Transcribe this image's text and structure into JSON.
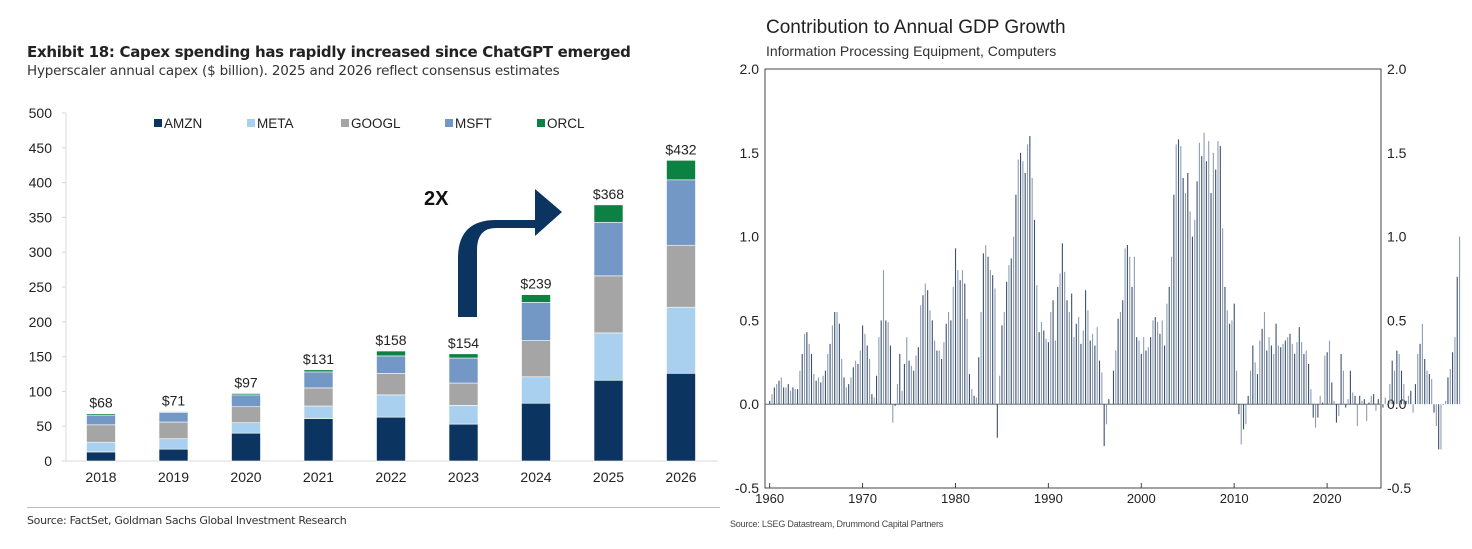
{
  "left": {
    "title": "Exhibit 18: Capex spending has rapidly increased since ChatGPT emerged",
    "subtitle": "Hyperscaler annual capex ($ billion). 2025 and 2026 reflect consensus estimates",
    "source": "Source: FactSet, Goldman Sachs Global Investment Research",
    "annotation": "2X"
  },
  "right": {
    "title": "Contribution to Annual GDP Growth",
    "subtitle": "Information Processing Equipment, Computers",
    "source": "Source: LSEG Datastream, Drummond Capital Partners"
  },
  "colors": {
    "AMZN": "#0b3560",
    "META": "#a9d1ef",
    "GOOGL": "#a5a5a5",
    "MSFT": "#7398c6",
    "ORCL": "#0b8244",
    "arrow": "#0b3560",
    "gdp_bar_dark": "#3c5070",
    "gdp_bar_light": "#8e9db2"
  },
  "chart_data": [
    {
      "type": "bar",
      "stacked": true,
      "title": "Exhibit 18: Capex spending has rapidly increased since ChatGPT emerged",
      "subtitle": "Hyperscaler annual capex ($ billion). 2025 and 2026 reflect consensus estimates",
      "xlabel": "",
      "ylabel": "",
      "ylim": [
        0,
        500
      ],
      "yticks": [
        0,
        50,
        100,
        150,
        200,
        250,
        300,
        350,
        400,
        450,
        500
      ],
      "grid": false,
      "legend_position": "top",
      "categories": [
        "2018",
        "2019",
        "2020",
        "2021",
        "2022",
        "2023",
        "2024",
        "2025",
        "2026"
      ],
      "series": [
        {
          "name": "AMZN",
          "values": [
            13,
            17,
            40,
            61,
            63,
            53,
            83,
            116,
            126
          ]
        },
        {
          "name": "META",
          "values": [
            14,
            15,
            15,
            18,
            32,
            27,
            38,
            68,
            95
          ]
        },
        {
          "name": "GOOGL",
          "values": [
            25,
            24,
            23,
            26,
            31,
            32,
            52,
            82,
            89
          ]
        },
        {
          "name": "MSFT",
          "values": [
            14,
            14,
            17,
            23,
            25,
            36,
            55,
            77,
            94
          ]
        },
        {
          "name": "ORCL",
          "values": [
            2,
            1,
            2,
            3,
            7,
            6,
            11,
            25,
            28
          ]
        }
      ],
      "totals": [
        68,
        71,
        97,
        131,
        158,
        154,
        239,
        368,
        432
      ],
      "total_labels": [
        "$68",
        "$71",
        "$97",
        "$131",
        "$158",
        "$154",
        "$239",
        "$368",
        "$432"
      ],
      "annotations": [
        {
          "text": "2X",
          "type": "arrow",
          "from": "2023",
          "to": "2025"
        }
      ]
    },
    {
      "type": "bar",
      "title": "Contribution to Annual GDP Growth",
      "subtitle": "Information Processing Equipment, Computers",
      "xlabel": "",
      "ylabel": "",
      "frequency": "quarterly",
      "x_start": 1960.0,
      "x_step": 0.25,
      "xlim": [
        1959.5,
        2025.8
      ],
      "ylim": [
        -0.5,
        2.0
      ],
      "yticks": [
        "-0.5",
        "0.0",
        "0.5",
        "1.0",
        "1.5",
        "2.0"
      ],
      "xticks": [
        "1960",
        "1970",
        "1980",
        "1990",
        "2000",
        "2010",
        "2020"
      ],
      "y_axis_both_sides": true,
      "grid": false,
      "values": [
        0.02,
        0.06,
        0.1,
        0.12,
        0.14,
        0.16,
        0.1,
        0.1,
        0.12,
        0.08,
        0.1,
        0.09,
        0.09,
        0.2,
        0.3,
        0.42,
        0.43,
        0.36,
        0.3,
        0.18,
        0.14,
        0.16,
        0.13,
        0.17,
        0.2,
        0.3,
        0.36,
        0.47,
        0.55,
        0.55,
        0.48,
        0.27,
        0.16,
        0.1,
        0.12,
        0.16,
        0.22,
        0.26,
        0.24,
        0.32,
        0.47,
        0.42,
        0.35,
        0.27,
        0.06,
        0.04,
        0.17,
        0.4,
        0.5,
        0.8,
        0.5,
        0.49,
        0.35,
        -0.11,
        -0.01,
        0.12,
        0.3,
        0.08,
        0.24,
        0.4,
        0.26,
        0.23,
        0.2,
        0.29,
        0.34,
        0.59,
        0.65,
        0.72,
        0.68,
        0.56,
        0.5,
        0.38,
        0.32,
        0.32,
        0.27,
        0.37,
        0.48,
        0.55,
        0.5,
        0.7,
        0.93,
        0.8,
        0.74,
        0.8,
        0.72,
        0.51,
        0.18,
        0.09,
        0.05,
        0.04,
        0.28,
        0.55,
        0.9,
        0.95,
        0.88,
        0.8,
        0.77,
        0.69,
        -0.2,
        0.17,
        0.47,
        0.55,
        0.73,
        0.83,
        0.87,
        1.0,
        1.25,
        1.46,
        1.5,
        1.45,
        1.38,
        1.55,
        1.6,
        1.35,
        1.1,
        0.71,
        0.43,
        0.49,
        0.44,
        0.39,
        0.37,
        0.55,
        0.62,
        0.38,
        0.7,
        0.78,
        0.96,
        0.79,
        0.62,
        0.55,
        0.66,
        0.4,
        0.48,
        0.52,
        0.36,
        0.44,
        0.68,
        0.56,
        0.38,
        0.42,
        0.35,
        0.46,
        0.26,
        0.19,
        -0.25,
        -0.12,
        0.03,
        0.0,
        0.2,
        0.32,
        0.51,
        0.55,
        0.62,
        0.93,
        0.95,
        0.88,
        0.7,
        0.88,
        0.4,
        0.38,
        0.3,
        0.4,
        0.32,
        0.34,
        0.4,
        0.5,
        0.52,
        0.49,
        0.42,
        0.5,
        0.35,
        0.6,
        0.7,
        0.88,
        1.25,
        1.55,
        1.58,
        1.54,
        1.35,
        1.26,
        1.38,
        1.15,
        1.0,
        1.1,
        1.33,
        1.56,
        1.48,
        1.62,
        1.45,
        1.57,
        1.26,
        1.5,
        1.4,
        1.57,
        1.54,
        1.05,
        0.7,
        0.56,
        0.48,
        0.5,
        0.6,
        0.2,
        -0.06,
        -0.24,
        -0.15,
        -0.12,
        0.05,
        0.2,
        0.35,
        0.25,
        0.18,
        0.38,
        0.45,
        0.55,
        0.32,
        0.4,
        0.35,
        0.3,
        0.48,
        0.35,
        0.34,
        0.36,
        0.38,
        0.4,
        0.42,
        0.36,
        0.3,
        0.37,
        0.46,
        0.37,
        0.3,
        0.32,
        0.24,
        0.09,
        -0.08,
        -0.14,
        -0.08,
        0.05,
        0.01,
        0.29,
        0.31,
        0.38,
        0.13,
        0.02,
        -0.11,
        -0.07,
        0.3,
        0.2,
        -0.02,
        0.03,
        0.2,
        0.07,
        0.05,
        -0.13,
        0.05,
        0.02,
        0.03,
        -0.1,
        0.01,
        0.05,
        0.06,
        -0.04,
        0.03,
        -0.07,
        -0.02,
        0.04,
        0.0,
        0.12,
        0.26,
        0.2,
        0.32,
        0.3,
        0.2,
        0.12,
        0.02,
        0.05,
        0.08,
        -0.05,
        0.12,
        0.3,
        0.36,
        0.48,
        0.27,
        0.2,
        0.18,
        0.15,
        -0.05,
        -0.13,
        -0.27,
        -0.27,
        0.0,
        0.02,
        0.16,
        0.21,
        0.31,
        0.4,
        0.76,
        1.0
      ]
    }
  ]
}
